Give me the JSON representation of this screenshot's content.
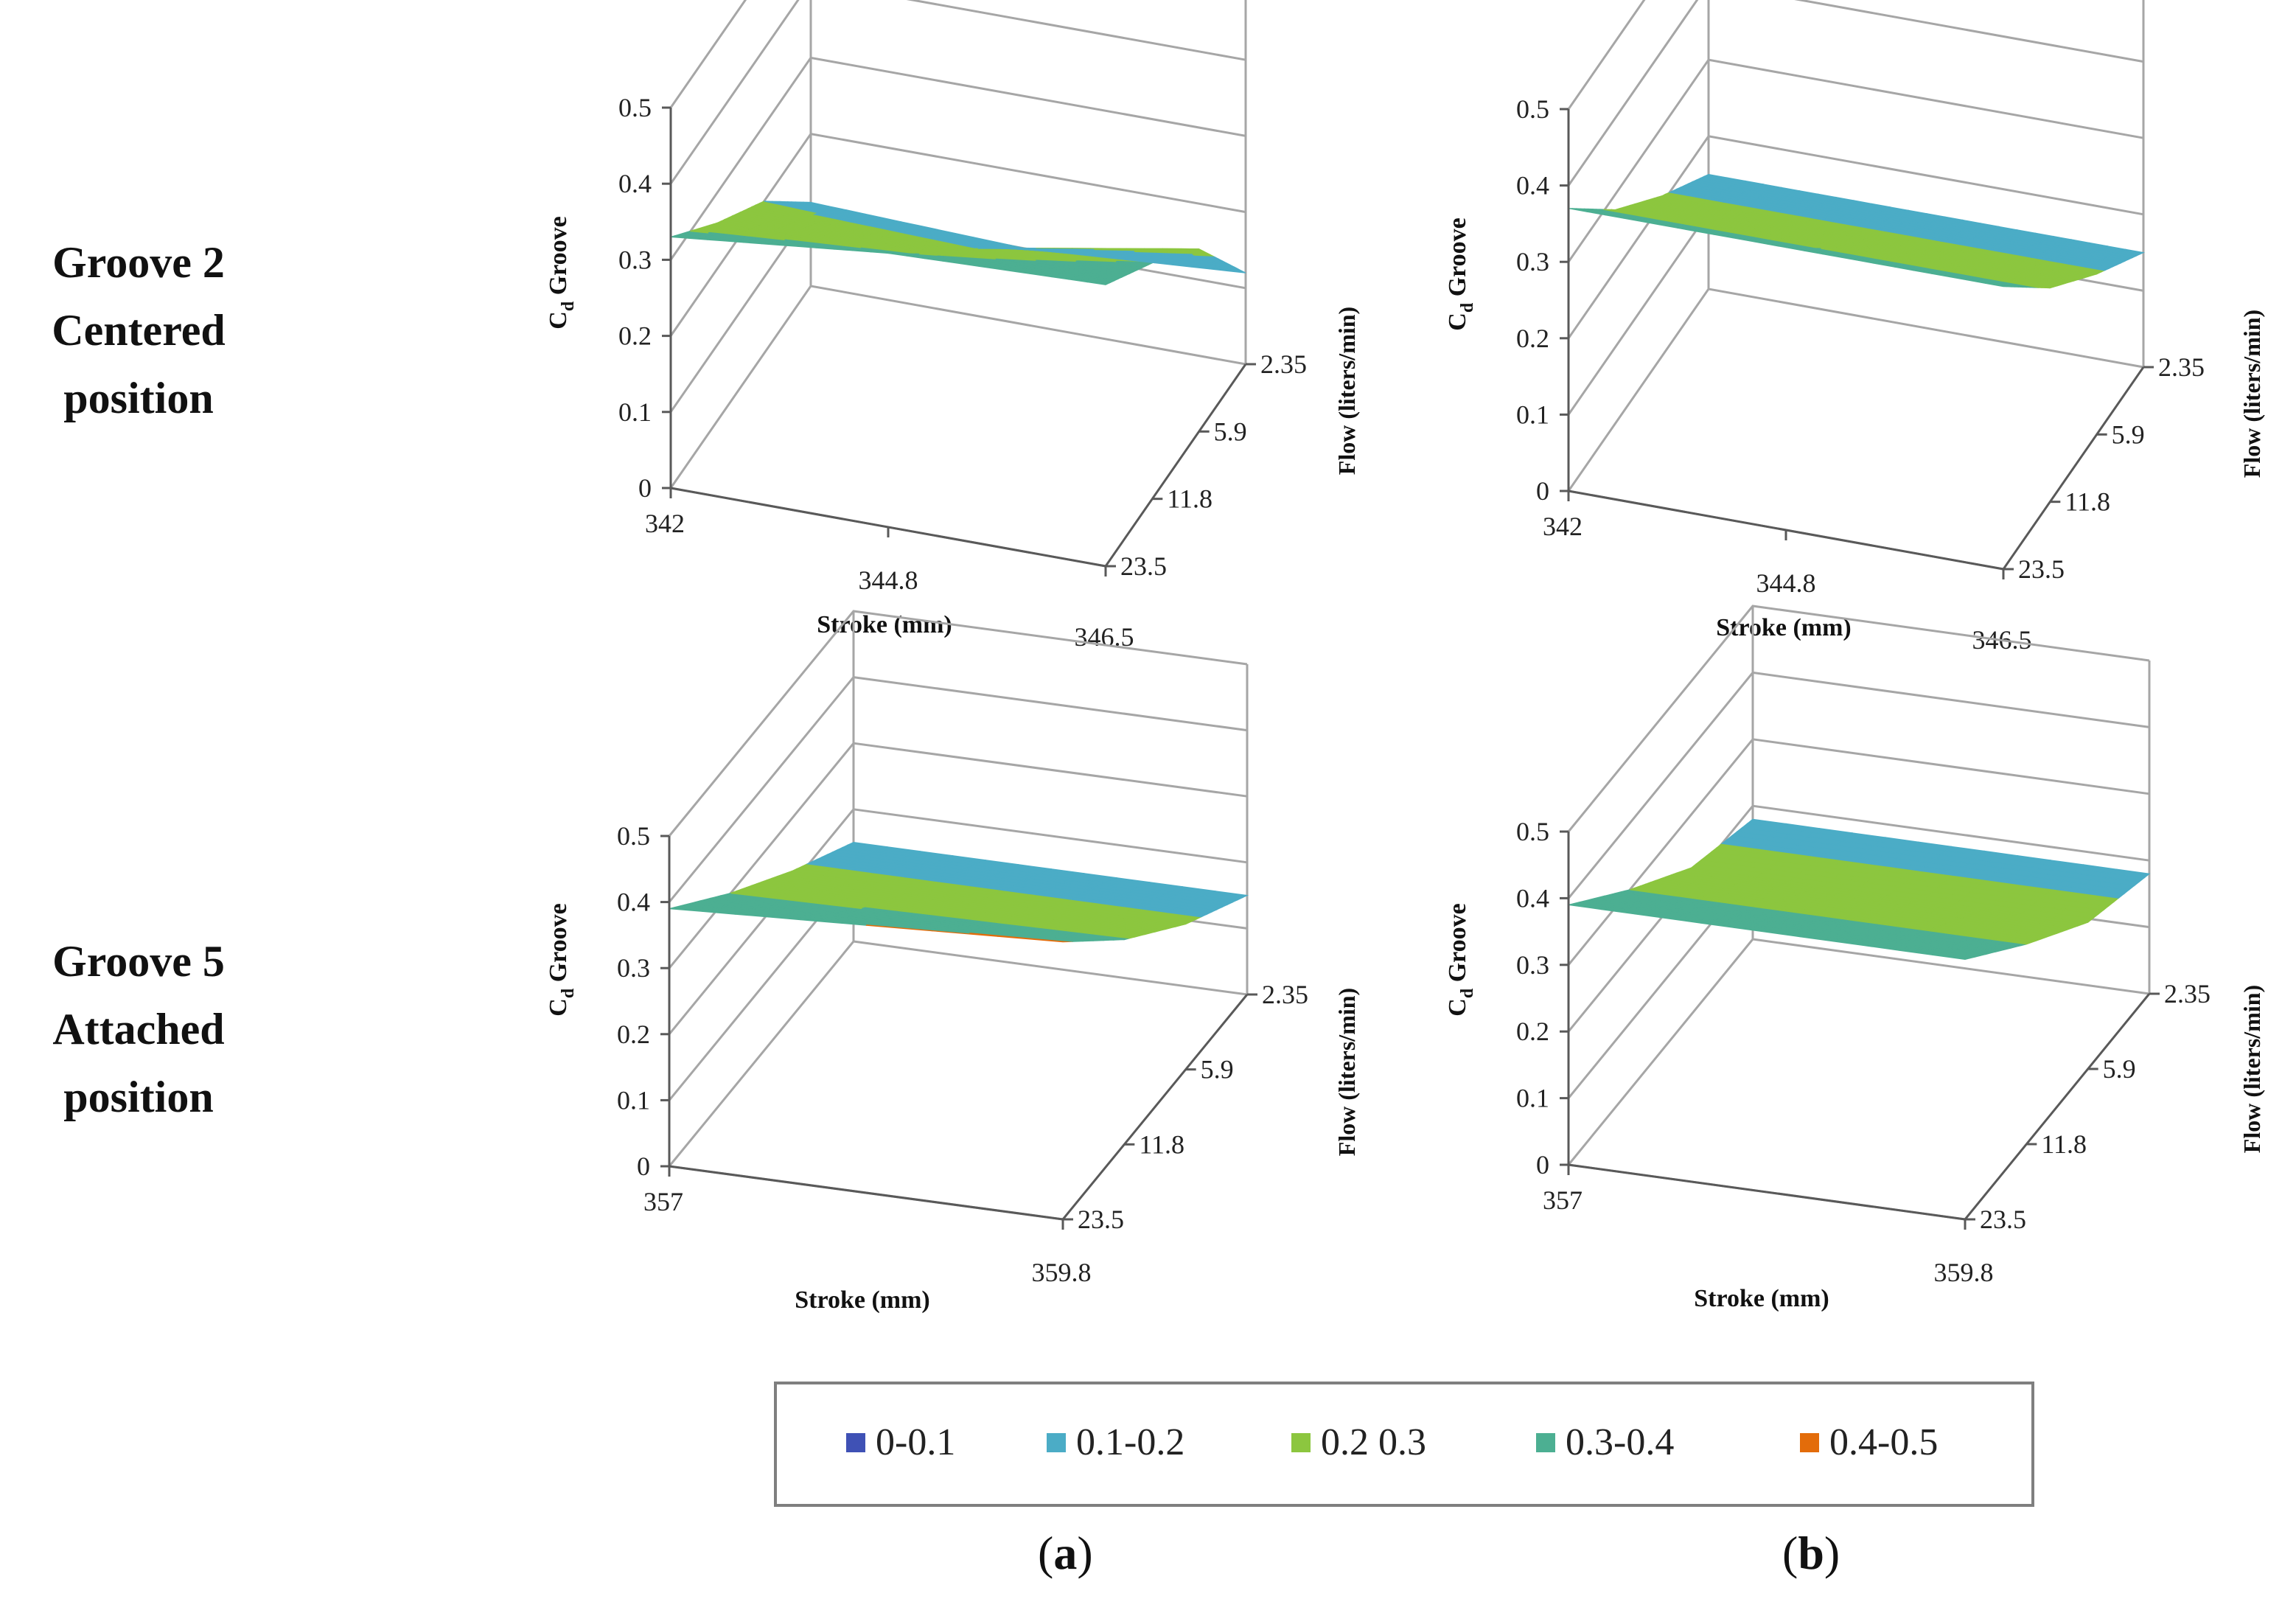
{
  "row_labels": [
    {
      "lines": [
        "Groove 2",
        "Centered",
        "position"
      ]
    },
    {
      "lines": [
        "Groove 5",
        "Attached",
        "position"
      ]
    }
  ],
  "column_labels": {
    "a": "a",
    "b": "b"
  },
  "legend": {
    "entries": [
      {
        "label": "0-0.1",
        "color": "#3F51B5"
      },
      {
        "label": "0.1-0.2",
        "color": "#4BACC6"
      },
      {
        "label": "0.2 0.3",
        "color": "#8CC63F"
      },
      {
        "label": "0.3-0.4",
        "color": "#4CAF92"
      },
      {
        "label": "0.4-0.5",
        "color": "#E36C0A"
      }
    ]
  },
  "chart_data": [
    {
      "type": "surface",
      "panel": "a",
      "row": "Groove 2 Centered position",
      "xlabel": "Stroke (mm)",
      "ylabel": "Flow (liters/min)",
      "zlabel": "Cd Groove",
      "zlabel_main": "C",
      "zlabel_sub": "d",
      "zlabel_rest": " Groove",
      "x_categories": [
        "342",
        "344.8",
        "346.5"
      ],
      "y_categories": [
        "2.35",
        "5.9",
        "11.8",
        "23.5"
      ],
      "zlim": [
        0,
        0.5
      ],
      "zticks": [
        "0",
        "0.1",
        "0.2",
        "0.3",
        "0.4",
        "0.5"
      ],
      "values": [
        [
          0.11,
          0.1,
          0.12
        ],
        [
          0.2,
          0.19,
          0.24
        ],
        [
          0.26,
          0.27,
          0.31
        ],
        [
          0.33,
          0.36,
          0.37
        ]
      ]
    },
    {
      "type": "surface",
      "panel": "b",
      "row": "Groove 2 Centered position",
      "xlabel": "Stroke (mm)",
      "ylabel": "Flow (liters/min)",
      "zlabel": "Cd Groove",
      "zlabel_main": "C",
      "zlabel_sub": "d",
      "zlabel_rest": " Groove",
      "x_categories": [
        "342",
        "344.8",
        "346.5"
      ],
      "y_categories": [
        "2.35",
        "5.9",
        "11.8",
        "23.5"
      ],
      "zlim": [
        0,
        0.5
      ],
      "zticks": [
        "0",
        "0.1",
        "0.2",
        "0.3",
        "0.4",
        "0.5"
      ],
      "values": [
        [
          0.15,
          0.15,
          0.15
        ],
        [
          0.21,
          0.21,
          0.21
        ],
        [
          0.28,
          0.28,
          0.28
        ],
        [
          0.37,
          0.37,
          0.37
        ]
      ]
    },
    {
      "type": "surface",
      "panel": "a",
      "row": "Groove 5 Attached position",
      "xlabel": "Stroke (mm)",
      "ylabel": "Flow (liters/min)",
      "zlabel": "Cd Groove",
      "zlabel_main": "C",
      "zlabel_sub": "d",
      "zlabel_rest": " Groove",
      "x_categories": [
        "357",
        "359.8"
      ],
      "y_categories": [
        "2.35",
        "5.9",
        "11.8",
        "23.5"
      ],
      "zlim": [
        0,
        0.5
      ],
      "zticks": [
        "0",
        "0.1",
        "0.2",
        "0.3",
        "0.4",
        "0.5"
      ],
      "values": [
        [
          0.15,
          0.15
        ],
        [
          0.22,
          0.22
        ],
        [
          0.3,
          0.31
        ],
        [
          0.39,
          0.42
        ]
      ]
    },
    {
      "type": "surface",
      "panel": "b",
      "row": "Groove 5 Attached position",
      "xlabel": "Stroke (mm)",
      "ylabel": "Flow (liters/min)",
      "zlabel": "Cd Groove",
      "zlabel_main": "C",
      "zlabel_sub": "d",
      "zlabel_rest": " Groove",
      "x_categories": [
        "357",
        "359.8"
      ],
      "y_categories": [
        "2.35",
        "5.9",
        "11.8",
        "23.5"
      ],
      "zlim": [
        0,
        0.5
      ],
      "zticks": [
        "0",
        "0.1",
        "0.2",
        "0.3",
        "0.4",
        "0.5"
      ],
      "values": [
        [
          0.18,
          0.18
        ],
        [
          0.22,
          0.22
        ],
        [
          0.3,
          0.3
        ],
        [
          0.39,
          0.39
        ]
      ]
    }
  ]
}
